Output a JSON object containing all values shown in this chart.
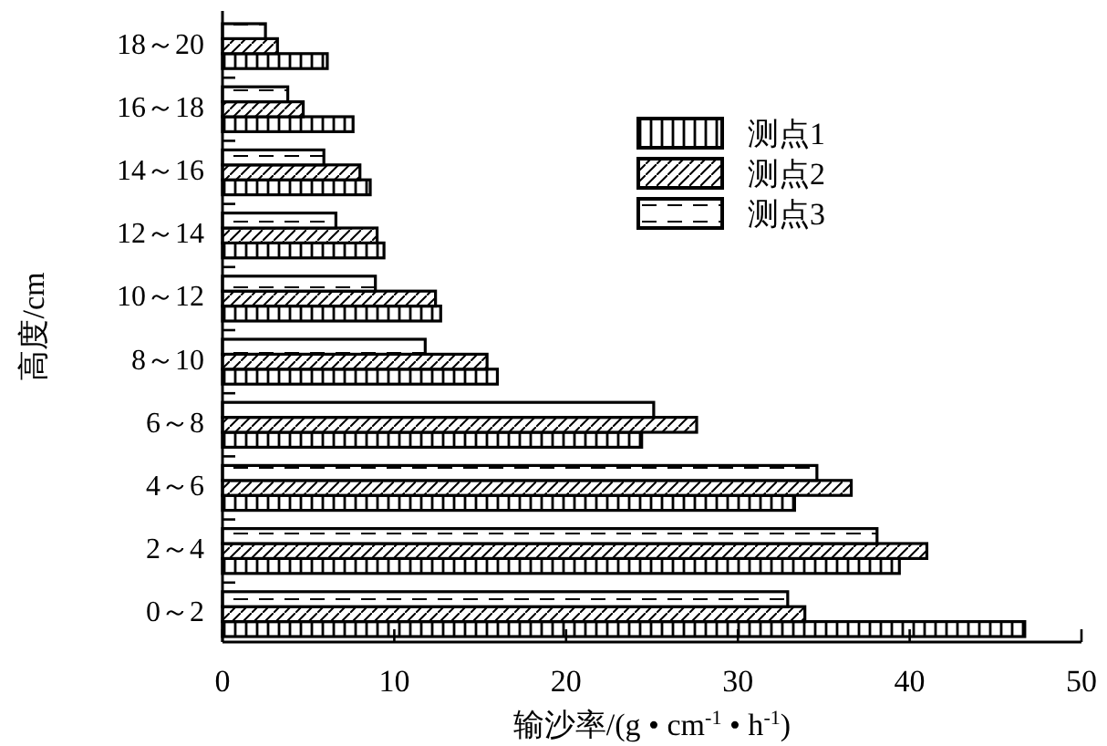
{
  "chart_data": {
    "type": "bar",
    "orientation": "horizontal",
    "xlabel": "输沙率/(g • cm$^{-1}$ • h$^{-1}$)",
    "ylabel": "高度/cm",
    "categories": [
      "18～20",
      "16～18",
      "14～16",
      "12～14",
      "10～12",
      "8～10",
      "6～8",
      "4～6",
      "2～4",
      "0～2"
    ],
    "xlim": [
      0,
      50
    ],
    "xticks": [
      0,
      10,
      20,
      30,
      40,
      50
    ],
    "legend": "top right",
    "series": [
      {
        "name": "测点1",
        "color": "#000000",
        "values": [
          6.1,
          7.6,
          8.6,
          9.4,
          12.7,
          16.0,
          24.4,
          33.3,
          39.4,
          46.7
        ]
      },
      {
        "name": "测点2",
        "color": "#000000",
        "values": [
          3.2,
          4.7,
          8.0,
          9.0,
          12.4,
          15.4,
          27.6,
          36.6,
          41.0,
          33.9
        ]
      },
      {
        "name": "测点3",
        "color": "#000000",
        "values": [
          2.5,
          3.8,
          5.9,
          6.6,
          8.9,
          11.8,
          25.1,
          34.6,
          38.1,
          32.9
        ]
      }
    ]
  }
}
